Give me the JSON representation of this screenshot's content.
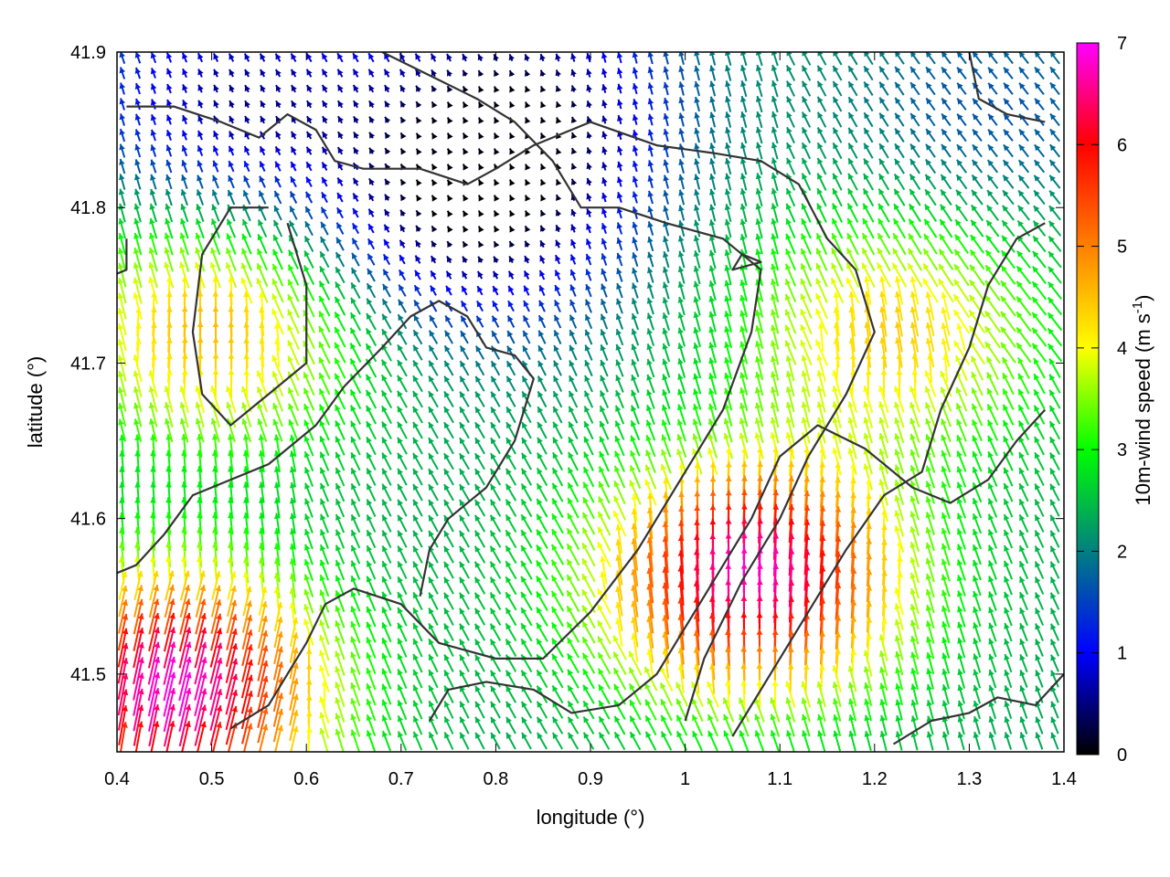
{
  "chart_data": {
    "type": "vector-field",
    "title": "",
    "xlabel": "longitude (°)",
    "ylabel": "latitude (°)",
    "xlim": [
      0.4,
      1.4
    ],
    "ylim": [
      41.45,
      41.9
    ],
    "xticks": [
      "0.4",
      "0.5",
      "0.6",
      "0.7",
      "0.8",
      "0.9",
      "1",
      "1.1",
      "1.2",
      "1.3",
      "1.4"
    ],
    "yticks": [
      "41.5",
      "41.6",
      "41.7",
      "41.8",
      "41.9"
    ],
    "colorbar": {
      "label_prefix": "10m-wind speed (m s",
      "label_exponent": "-1",
      "label_suffix": ")",
      "range": [
        0,
        7
      ],
      "ticks": [
        "0",
        "1",
        "2",
        "3",
        "4",
        "5",
        "6",
        "7"
      ],
      "palette": [
        "#000000",
        "#0000ff",
        "#008080",
        "#00ff00",
        "#ffff00",
        "#ff8000",
        "#ff0000",
        "#ff00ff"
      ]
    },
    "grid": false,
    "legend": "none",
    "wind_field": {
      "base_direction_deg": 112,
      "base_speed": 2.3,
      "features": [
        {
          "name": "south-west jet",
          "lon": 0.46,
          "lat": 41.49,
          "peak_speed": 6.9
        },
        {
          "name": "south-east jet",
          "lon": 1.07,
          "lat": 41.56,
          "peak_speed": 6.8
        },
        {
          "name": "west valley",
          "lon": 0.5,
          "lat": 41.72,
          "peak_speed": 4.6
        },
        {
          "name": "east high",
          "lon": 1.22,
          "lat": 41.72,
          "peak_speed": 4.4
        },
        {
          "name": "central calm",
          "lon": 0.77,
          "lat": 41.79,
          "peak_speed": 0.4
        },
        {
          "name": "north-west calm",
          "lon": 0.52,
          "lat": 41.87,
          "peak_speed": 0.6
        },
        {
          "name": "north calm",
          "lon": 0.83,
          "lat": 41.87,
          "peak_speed": 0.5
        },
        {
          "name": "north-east band",
          "lon": 1.32,
          "lat": 41.86,
          "peak_speed": 1.6
        }
      ]
    },
    "contours": [
      {
        "points": [
          [
            0.4,
            41.565
          ],
          [
            0.42,
            41.57
          ],
          [
            0.45,
            41.59
          ],
          [
            0.48,
            41.615
          ],
          [
            0.52,
            41.625
          ],
          [
            0.56,
            41.635
          ],
          [
            0.61,
            41.66
          ],
          [
            0.64,
            41.685
          ],
          [
            0.68,
            41.71
          ],
          [
            0.71,
            41.73
          ],
          [
            0.74,
            41.74
          ],
          [
            0.77,
            41.73
          ],
          [
            0.79,
            41.71
          ],
          [
            0.82,
            41.705
          ],
          [
            0.84,
            41.69
          ],
          [
            0.82,
            41.65
          ],
          [
            0.79,
            41.62
          ],
          [
            0.75,
            41.6
          ],
          [
            0.73,
            41.58
          ],
          [
            0.72,
            41.55
          ]
        ]
      },
      {
        "points": [
          [
            0.41,
            41.865
          ],
          [
            0.46,
            41.865
          ],
          [
            0.51,
            41.855
          ],
          [
            0.55,
            41.845
          ],
          [
            0.58,
            41.86
          ],
          [
            0.61,
            41.85
          ],
          [
            0.63,
            41.83
          ],
          [
            0.66,
            41.825
          ],
          [
            0.72,
            41.825
          ],
          [
            0.77,
            41.815
          ],
          [
            0.8,
            41.825
          ],
          [
            0.84,
            41.84
          ],
          [
            0.9,
            41.855
          ],
          [
            0.97,
            41.84
          ],
          [
            1.03,
            41.835
          ],
          [
            1.08,
            41.83
          ],
          [
            1.12,
            41.815
          ],
          [
            1.15,
            41.78
          ],
          [
            1.18,
            41.76
          ],
          [
            1.2,
            41.72
          ],
          [
            1.17,
            41.68
          ],
          [
            1.13,
            41.64
          ],
          [
            1.1,
            41.6
          ],
          [
            1.06,
            41.56
          ],
          [
            1.02,
            41.51
          ],
          [
            1.0,
            41.47
          ]
        ]
      },
      {
        "points": [
          [
            0.52,
            41.465
          ],
          [
            0.56,
            41.48
          ],
          [
            0.6,
            41.52
          ],
          [
            0.62,
            41.545
          ],
          [
            0.65,
            41.555
          ],
          [
            0.7,
            41.545
          ],
          [
            0.74,
            41.52
          ],
          [
            0.8,
            41.51
          ],
          [
            0.85,
            41.51
          ],
          [
            0.9,
            41.54
          ],
          [
            0.95,
            41.58
          ],
          [
            1.0,
            41.63
          ],
          [
            1.04,
            41.67
          ],
          [
            1.07,
            41.72
          ],
          [
            1.08,
            41.76
          ],
          [
            1.04,
            41.78
          ],
          [
            0.98,
            41.79
          ],
          [
            0.93,
            41.8
          ],
          [
            0.89,
            41.8
          ],
          [
            0.86,
            41.83
          ],
          [
            0.82,
            41.855
          ],
          [
            0.78,
            41.87
          ],
          [
            0.73,
            41.885
          ],
          [
            0.68,
            41.9
          ]
        ]
      },
      {
        "points": [
          [
            0.58,
            41.79
          ],
          [
            0.6,
            41.75
          ],
          [
            0.6,
            41.7
          ],
          [
            0.56,
            41.68
          ],
          [
            0.52,
            41.66
          ],
          [
            0.49,
            41.68
          ],
          [
            0.48,
            41.72
          ],
          [
            0.49,
            41.77
          ],
          [
            0.52,
            41.8
          ],
          [
            0.56,
            41.8
          ]
        ]
      },
      {
        "points": [
          [
            0.73,
            41.47
          ],
          [
            0.75,
            41.49
          ],
          [
            0.79,
            41.495
          ],
          [
            0.84,
            41.49
          ],
          [
            0.88,
            41.475
          ],
          [
            0.93,
            41.48
          ],
          [
            0.97,
            41.5
          ],
          [
            1.0,
            41.53
          ],
          [
            1.03,
            41.56
          ],
          [
            1.07,
            41.6
          ],
          [
            1.1,
            41.64
          ],
          [
            1.14,
            41.66
          ],
          [
            1.19,
            41.645
          ],
          [
            1.24,
            41.62
          ],
          [
            1.28,
            41.61
          ],
          [
            1.32,
            41.625
          ],
          [
            1.35,
            41.65
          ],
          [
            1.38,
            41.67
          ]
        ]
      },
      {
        "points": [
          [
            1.05,
            41.46
          ],
          [
            1.09,
            41.5
          ],
          [
            1.13,
            41.54
          ],
          [
            1.17,
            41.58
          ],
          [
            1.21,
            41.615
          ],
          [
            1.25,
            41.63
          ],
          [
            1.27,
            41.67
          ],
          [
            1.3,
            41.71
          ],
          [
            1.32,
            41.75
          ],
          [
            1.35,
            41.78
          ],
          [
            1.38,
            41.79
          ]
        ]
      },
      {
        "points": [
          [
            1.22,
            41.455
          ],
          [
            1.26,
            41.47
          ],
          [
            1.3,
            41.475
          ],
          [
            1.33,
            41.485
          ],
          [
            1.37,
            41.48
          ],
          [
            1.4,
            41.5
          ]
        ]
      },
      {
        "points": [
          [
            1.3,
            41.9
          ],
          [
            1.31,
            41.87
          ],
          [
            1.34,
            41.86
          ],
          [
            1.38,
            41.855
          ]
        ]
      },
      {
        "points": [
          [
            0.37,
            41.75
          ],
          [
            0.41,
            41.76
          ],
          [
            0.41,
            41.78
          ]
        ]
      },
      {
        "points": [
          [
            1.06,
            41.77
          ],
          [
            1.08,
            41.765
          ],
          [
            1.05,
            41.76
          ],
          [
            1.06,
            41.77
          ]
        ]
      }
    ]
  }
}
